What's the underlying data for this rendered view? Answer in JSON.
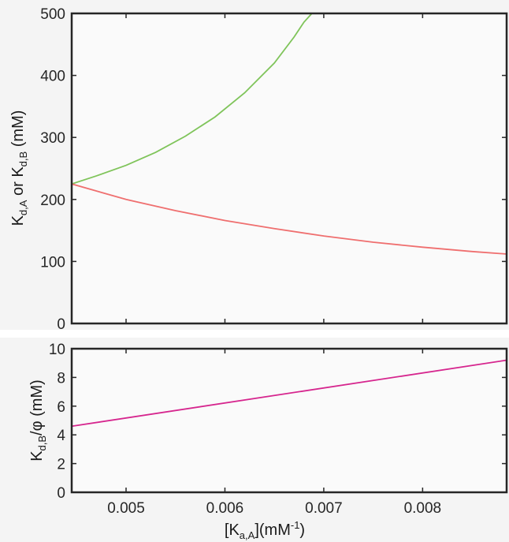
{
  "chart_data": [
    {
      "type": "line",
      "ylabel": {
        "base1": "K",
        "sub1": "d,A",
        "mid": " or K",
        "sub2": "d,B",
        "unit": " (mM)"
      },
      "xlim": [
        0.00445,
        0.00885
      ],
      "ylim": [
        0,
        500
      ],
      "xticks": [
        0.005,
        0.006,
        0.007,
        0.008
      ],
      "yticks": [
        0,
        100,
        200,
        300,
        400,
        500
      ],
      "grid": false,
      "series": [
        {
          "color": "#7fc45a",
          "x": [
            0.00445,
            0.0047,
            0.005,
            0.0053,
            0.0056,
            0.0059,
            0.0062,
            0.0065,
            0.0067,
            0.0068,
            0.00688
          ],
          "values": [
            225,
            238,
            255,
            276,
            302,
            333,
            372,
            420,
            462,
            486,
            500
          ]
        },
        {
          "color": "#ef6f6f",
          "x": [
            0.00445,
            0.005,
            0.0055,
            0.006,
            0.0065,
            0.007,
            0.0075,
            0.008,
            0.0085,
            0.00885
          ],
          "values": [
            225,
            200,
            182,
            166,
            153,
            141,
            131,
            123,
            116,
            112
          ]
        }
      ]
    },
    {
      "type": "line",
      "xlabel": {
        "open": "[K",
        "sub": "a,A",
        "close": "](mM",
        "sup": "-1",
        "end": ")"
      },
      "ylabel": {
        "base": "K",
        "sub": "d,B",
        "rest": "/φ (mM)"
      },
      "xlim": [
        0.00445,
        0.00885
      ],
      "ylim": [
        0,
        10
      ],
      "xticks": [
        0.005,
        0.006,
        0.007,
        0.008
      ],
      "xtick_labels": [
        "0.005",
        "0.006",
        "0.007",
        "0.008"
      ],
      "yticks": [
        0,
        2,
        4,
        6,
        8,
        10
      ],
      "grid": false,
      "series": [
        {
          "color": "#d6268e",
          "x": [
            0.00445,
            0.00885
          ],
          "values": [
            4.6,
            9.2
          ]
        }
      ]
    }
  ]
}
